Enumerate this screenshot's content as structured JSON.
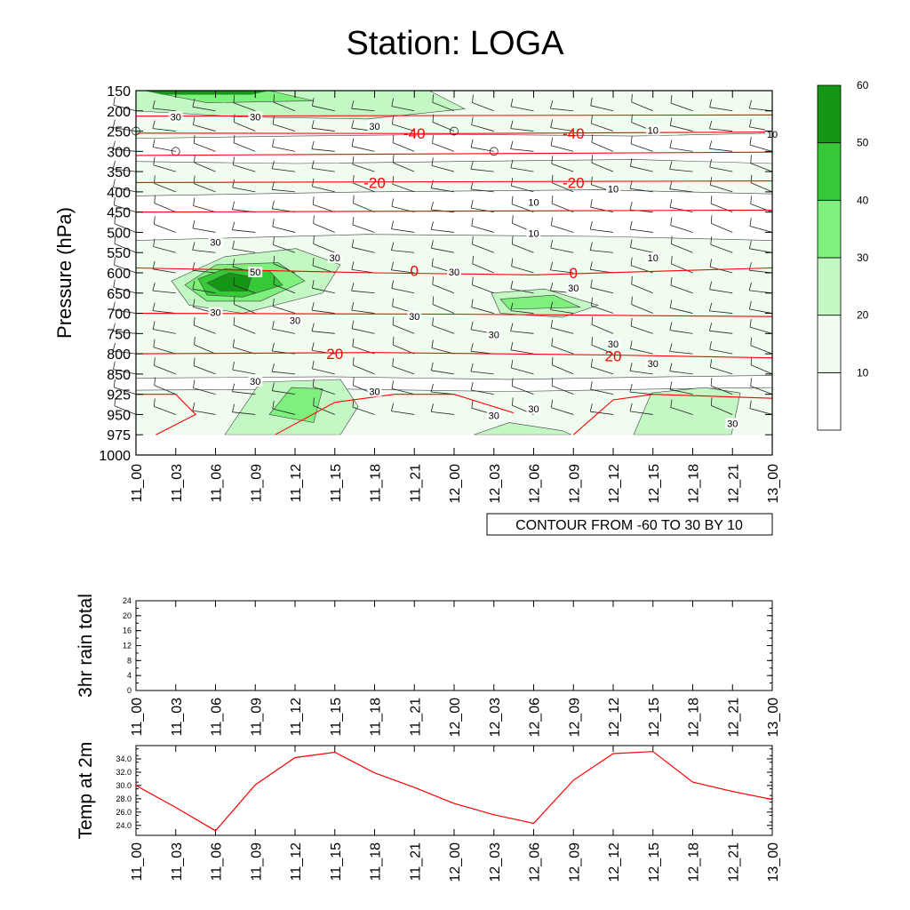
{
  "title": "Station: LOGA",
  "time_labels": [
    "11_00",
    "11_03",
    "11_06",
    "11_09",
    "11_12",
    "11_15",
    "11_18",
    "11_21",
    "12_00",
    "12_03",
    "12_06",
    "12_09",
    "12_12",
    "12_15",
    "12_18",
    "12_21",
    "13_00"
  ],
  "colors": {
    "fill_levels": [
      "#ffffff",
      "#f0fcf0",
      "#c3f7c3",
      "#7ef07e",
      "#37c837",
      "#169616"
    ],
    "temp_contour": "#ff0000",
    "temp_line": "#ff0000",
    "contour_line": "#404040"
  },
  "chart_data": [
    {
      "id": "cross-section",
      "type": "heatmap",
      "ylabel": "Pressure (hPa)",
      "pressure_levels": [
        150,
        200,
        250,
        300,
        350,
        400,
        450,
        500,
        550,
        600,
        650,
        700,
        750,
        800,
        850,
        925,
        950,
        975,
        1000
      ],
      "ylim": [
        150,
        1000
      ],
      "xlabels_ref": "time_labels",
      "footnote": "CONTOUR FROM -60 TO 30 BY 10",
      "colorbar": {
        "levels": [
          10,
          20,
          30,
          40,
          50,
          60
        ]
      },
      "temp_contours": [
        {
          "value": "-40",
          "labels": [
            {
              "time": "11_21",
              "p": 255
            },
            {
              "time": "12_09",
              "p": 255
            }
          ]
        },
        {
          "value": "-20",
          "labels": [
            {
              "time": "11_18",
              "p": 377
            },
            {
              "time": "12_09",
              "p": 377
            }
          ]
        },
        {
          "value": "0",
          "labels": [
            {
              "time": "11_21",
              "p": 595
            },
            {
              "time": "12_09",
              "p": 600
            }
          ]
        },
        {
          "value": "20",
          "labels": [
            {
              "time": "11_15",
              "p": 800
            },
            {
              "time": "12_12",
              "p": 805
            }
          ]
        }
      ],
      "humidity_labels": [
        {
          "text": "30",
          "time": "11_03",
          "p": 217
        },
        {
          "text": "30",
          "time": "11_09",
          "p": 217
        },
        {
          "text": "30",
          "time": "11_18",
          "p": 240
        },
        {
          "text": "30",
          "time": "11_06",
          "p": 527
        },
        {
          "text": "30",
          "time": "11_15",
          "p": 565
        },
        {
          "text": "50",
          "time": "11_09",
          "p": 600
        },
        {
          "text": "30",
          "time": "11_06",
          "p": 700
        },
        {
          "text": "30",
          "time": "11_12",
          "p": 720
        },
        {
          "text": "30",
          "time": "11_21",
          "p": 710
        },
        {
          "text": "30",
          "time": "12_03",
          "p": 755
        },
        {
          "text": "30",
          "time": "12_00",
          "p": 600
        },
        {
          "text": "30",
          "time": "12_09",
          "p": 640
        },
        {
          "text": "30",
          "time": "12_12",
          "p": 778
        },
        {
          "text": "30",
          "time": "12_15",
          "p": 826
        },
        {
          "text": "30",
          "time": "11_09",
          "p": 880
        },
        {
          "text": "30",
          "time": "11_18",
          "p": 918
        },
        {
          "text": "30",
          "time": "12_03",
          "p": 952
        },
        {
          "text": "30",
          "time": "12_06",
          "p": 944
        },
        {
          "text": "30",
          "time": "12_21",
          "p": 962
        },
        {
          "text": "10",
          "time": "12_15",
          "p": 250
        },
        {
          "text": "10",
          "time": "13_00",
          "p": 260
        },
        {
          "text": "10",
          "time": "12_12",
          "p": 395
        },
        {
          "text": "10",
          "time": "12_06",
          "p": 428
        },
        {
          "text": "10",
          "time": "12_06",
          "p": 505
        },
        {
          "text": "10",
          "time": "12_15",
          "p": 565
        }
      ]
    },
    {
      "id": "rain",
      "type": "line",
      "ylabel": "3hr rain total",
      "ylim": [
        0,
        24
      ],
      "yticks": [
        "0",
        "4",
        "8",
        "12",
        "16",
        "20",
        "24"
      ],
      "x_ref": "time_labels",
      "series": [
        {
          "name": "3hr rain total",
          "values": []
        }
      ]
    },
    {
      "id": "temp2m",
      "type": "line",
      "ylabel": "Temp at 2m",
      "ylim": [
        22.5,
        36.0
      ],
      "yticks": [
        "24.0",
        "26.0",
        "28.0",
        "30.0",
        "32.0",
        "34.0"
      ],
      "x_ref": "time_labels",
      "series": [
        {
          "name": "Temp at 2m",
          "values": [
            30.0,
            26.7,
            23.2,
            30.1,
            34.2,
            35.0,
            31.9,
            29.7,
            27.3,
            25.6,
            24.3,
            30.8,
            34.8,
            35.1,
            30.5,
            29.1,
            27.9
          ]
        }
      ]
    }
  ]
}
